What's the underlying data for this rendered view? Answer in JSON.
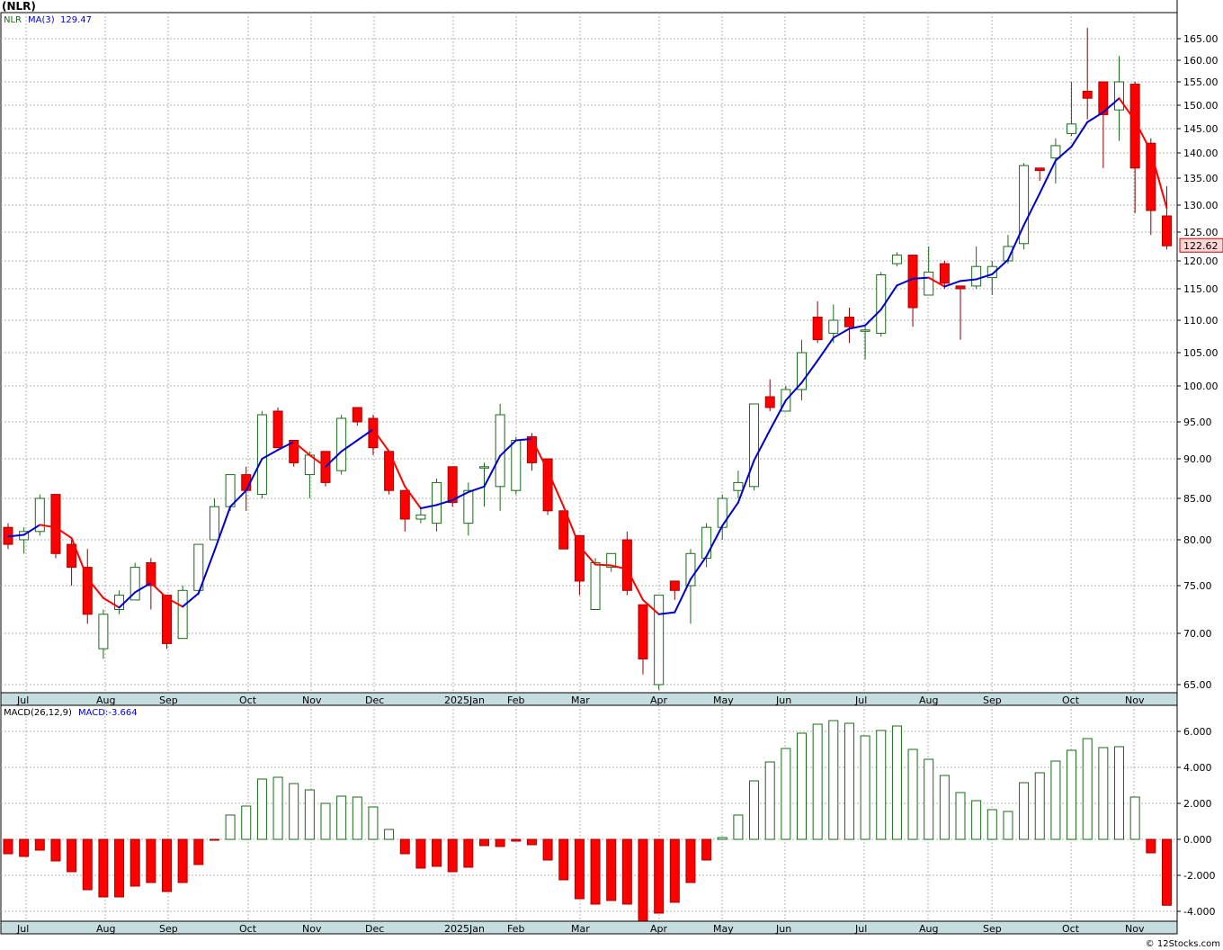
{
  "header": {
    "symbol": "(NLR)"
  },
  "footer": {
    "credit": "© 12Stocks.com"
  },
  "price_panel": {
    "legend_symbol": "NLR",
    "legend_ma": "MA(3)",
    "legend_ma_value": "129.47",
    "last_price_tag": "122.62",
    "y_ticks": [
      "165.00",
      "160.00",
      "155.00",
      "150.00",
      "145.00",
      "140.00",
      "135.00",
      "130.00",
      "125.00",
      "120.00",
      "115.00",
      "110.00",
      "105.00",
      "100.00",
      "95.00",
      "90.00",
      "85.00",
      "80.00",
      "75.00",
      "70.00",
      "65.00"
    ],
    "x_labels": [
      "Jul",
      "Aug",
      "Sep",
      "Oct",
      "Nov",
      "Dec",
      "2025Jan",
      "Feb",
      "Mar",
      "Apr",
      "May",
      "Jun",
      "Jul",
      "Aug",
      "Sep",
      "Oct",
      "Nov"
    ]
  },
  "macd_panel": {
    "legend_label": "MACD(26,12,9)",
    "legend_value": "MACD:-3.664",
    "y_ticks": [
      "6.000",
      "4.000",
      "2.000",
      "0.000",
      "-2.000",
      "-4.000"
    ],
    "x_labels": [
      "Jul",
      "Aug",
      "Sep",
      "Oct",
      "Nov",
      "Dec",
      "2025Jan",
      "Feb",
      "Mar",
      "Apr",
      "May",
      "Jun",
      "Jul",
      "Aug",
      "Sep",
      "Oct",
      "Nov"
    ]
  },
  "colors": {
    "up": "#1a6b1a",
    "down": "#ff0000",
    "ma_up": "#0000cc",
    "ma_down": "#ff0000",
    "grid": "#b0b0b0",
    "axis_band": "#c6dde0"
  },
  "chart_data": [
    {
      "type": "candlestick",
      "title": "(NLR)",
      "series_name": "NLR",
      "interval": "weekly",
      "ylim": [
        64,
        170
      ],
      "ohlc": [
        [
          81.5,
          82.0,
          79.0,
          79.5
        ],
        [
          80.0,
          81.5,
          78.5,
          81.0
        ],
        [
          81.0,
          85.5,
          80.5,
          85.0
        ],
        [
          85.5,
          85.5,
          78.0,
          78.5
        ],
        [
          79.5,
          80.0,
          75.0,
          77.0
        ],
        [
          77.0,
          79.0,
          71.0,
          72.0
        ],
        [
          68.5,
          72.5,
          67.5,
          72.0
        ],
        [
          72.5,
          74.5,
          72.0,
          74.0
        ],
        [
          73.5,
          77.5,
          73.5,
          77.0
        ],
        [
          77.5,
          78.0,
          72.5,
          75.0
        ],
        [
          74.0,
          74.0,
          68.5,
          69.0
        ],
        [
          69.5,
          75.0,
          69.5,
          74.5
        ],
        [
          74.5,
          79.5,
          74.0,
          79.5
        ],
        [
          80.0,
          85.0,
          80.0,
          84.0
        ],
        [
          84.0,
          88.0,
          83.5,
          88.0
        ],
        [
          88.0,
          89.0,
          83.5,
          86.0
        ],
        [
          85.5,
          96.5,
          85.0,
          96.0
        ],
        [
          96.5,
          97.0,
          91.5,
          91.5
        ],
        [
          92.5,
          92.5,
          89.0,
          89.5
        ],
        [
          88.0,
          91.0,
          85.0,
          90.5
        ],
        [
          91.0,
          91.0,
          86.5,
          87.0
        ],
        [
          88.5,
          96.0,
          88.0,
          95.5
        ],
        [
          97.0,
          97.0,
          94.5,
          95.0
        ],
        [
          95.5,
          96.0,
          90.5,
          91.5
        ],
        [
          91.0,
          91.0,
          85.5,
          86.0
        ],
        [
          86.0,
          86.0,
          81.0,
          82.5
        ],
        [
          82.5,
          84.0,
          82.0,
          83.0
        ],
        [
          82.0,
          87.5,
          81.0,
          87.0
        ],
        [
          89.0,
          89.0,
          84.0,
          84.5
        ],
        [
          82.0,
          87.0,
          80.5,
          86.0
        ],
        [
          89.0,
          89.5,
          84.0,
          89.0
        ],
        [
          86.5,
          97.5,
          83.5,
          96.0
        ],
        [
          86.0,
          93.0,
          85.5,
          92.5
        ],
        [
          93.0,
          93.5,
          88.5,
          89.5
        ],
        [
          90.0,
          90.0,
          83.0,
          83.5
        ],
        [
          83.5,
          83.5,
          79.0,
          79.0
        ],
        [
          80.5,
          80.5,
          74.0,
          75.5
        ],
        [
          72.5,
          78.0,
          72.5,
          77.5
        ],
        [
          77.0,
          78.5,
          76.5,
          78.5
        ],
        [
          80.0,
          81.0,
          74.0,
          74.5
        ],
        [
          73.0,
          73.0,
          66.0,
          67.5
        ],
        [
          65.0,
          74.0,
          64.5,
          74.0
        ],
        [
          75.5,
          75.5,
          73.5,
          74.5
        ],
        [
          75.0,
          79.0,
          71.0,
          78.5
        ],
        [
          78.0,
          82.0,
          77.0,
          81.5
        ],
        [
          81.5,
          85.5,
          80.0,
          85.0
        ],
        [
          86.0,
          88.5,
          85.0,
          87.0
        ],
        [
          86.5,
          97.5,
          86.0,
          97.5
        ],
        [
          98.5,
          101.0,
          96.5,
          97.0
        ],
        [
          96.5,
          100.0,
          96.5,
          99.5
        ],
        [
          99.5,
          107.0,
          98.0,
          105.0
        ],
        [
          110.5,
          113.0,
          106.5,
          107.0
        ],
        [
          108.0,
          112.5,
          106.5,
          110.0
        ],
        [
          110.5,
          112.0,
          106.5,
          109.0
        ],
        [
          108.5,
          109.0,
          104.0,
          108.5
        ],
        [
          108.0,
          118.0,
          107.5,
          117.5
        ],
        [
          119.5,
          121.5,
          119.0,
          121.0
        ],
        [
          121.0,
          121.0,
          109.0,
          112.0
        ],
        [
          114.0,
          122.5,
          114.0,
          118.0
        ],
        [
          119.5,
          120.0,
          115.0,
          116.0
        ],
        [
          115.5,
          115.5,
          107.0,
          115.0
        ],
        [
          115.5,
          122.5,
          115.0,
          119.0
        ],
        [
          117.0,
          120.0,
          114.0,
          119.0
        ],
        [
          120.0,
          124.5,
          119.5,
          122.5
        ],
        [
          123.0,
          138.0,
          122.0,
          137.5
        ],
        [
          137.0,
          137.0,
          134.5,
          136.5
        ],
        [
          139.0,
          143.0,
          134.0,
          141.5
        ],
        [
          144.0,
          155.0,
          143.5,
          146.0
        ],
        [
          153.0,
          167.5,
          147.0,
          151.5
        ],
        [
          155.0,
          155.0,
          137.0,
          148.0
        ],
        [
          149.0,
          161.0,
          142.5,
          155.0
        ],
        [
          154.5,
          155.0,
          128.5,
          137.0
        ],
        [
          142.0,
          143.0,
          124.5,
          129.0
        ],
        [
          128.0,
          133.5,
          122.0,
          122.62
        ]
      ],
      "ma3": [
        80.4,
        80.6,
        81.8,
        81.5,
        80.2,
        75.8,
        73.7,
        72.7,
        74.3,
        75.3,
        73.7,
        72.8,
        74.2,
        78.8,
        84.0,
        86.0,
        90.0,
        91.2,
        92.3,
        90.5,
        89.0,
        91.0,
        92.5,
        94.0,
        91.0,
        86.5,
        83.8,
        84.2,
        84.8,
        85.8,
        86.5,
        90.4,
        92.5,
        92.7,
        88.5,
        84.0,
        79.3,
        77.3,
        77.2,
        76.8,
        73.5,
        72.0,
        72.2,
        75.7,
        78.2,
        81.7,
        84.5,
        89.8,
        93.9,
        98.0,
        100.5,
        103.8,
        107.3,
        108.7,
        109.2,
        111.7,
        115.6,
        116.8,
        117.0,
        115.4,
        116.4,
        116.7,
        117.6,
        120.2,
        126.3,
        132.2,
        138.5,
        141.3,
        146.4,
        148.5,
        151.5,
        146.7,
        140.3,
        129.47
      ]
    },
    {
      "type": "bar",
      "title": "MACD(26,12,9)",
      "series_name": "MACD",
      "ylim": [
        -4.6,
        6.9
      ],
      "values": [
        -0.8,
        -0.95,
        -0.6,
        -1.2,
        -1.8,
        -2.8,
        -3.2,
        -3.2,
        -2.6,
        -2.4,
        -2.9,
        -2.4,
        -1.4,
        -0.05,
        1.35,
        1.85,
        3.35,
        3.45,
        3.1,
        2.75,
        2.0,
        2.4,
        2.35,
        1.8,
        0.55,
        -0.8,
        -1.6,
        -1.5,
        -1.8,
        -1.55,
        -0.35,
        -0.4,
        -0.1,
        -0.3,
        -1.15,
        -2.25,
        -3.3,
        -3.6,
        -3.4,
        -3.6,
        -4.6,
        -4.1,
        -3.5,
        -2.4,
        -1.15,
        0.1,
        1.35,
        3.25,
        4.3,
        5.05,
        5.9,
        6.4,
        6.6,
        6.45,
        5.75,
        6.05,
        6.3,
        5.0,
        4.45,
        3.55,
        2.6,
        2.15,
        1.65,
        1.55,
        3.15,
        3.7,
        4.35,
        4.95,
        5.6,
        5.1,
        5.15,
        2.35,
        -0.75,
        -3.664
      ]
    }
  ]
}
